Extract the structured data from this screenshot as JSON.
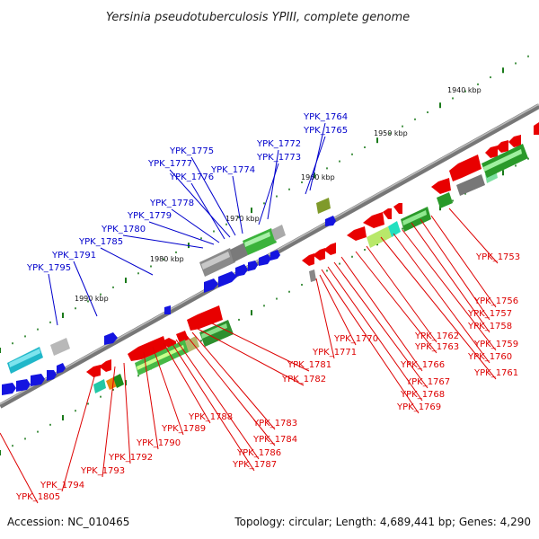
{
  "title": "Yersinia pseudotuberculosis YPIII, complete genome",
  "footer": {
    "accession": "Accession: NC_010465",
    "summary": "Topology: circular; Length: 4,689,441 bp; Genes: 4,290"
  },
  "colors": {
    "backbone": "#777777",
    "forward_label": "#0000cc",
    "reverse_label": "#dd0000",
    "tick": "#1a7a1a"
  },
  "scale_labels": [
    "1940 kbp",
    "1950 kbp",
    "1960 kbp",
    "1970 kbp",
    "1980 kbp",
    "1990 kbp"
  ],
  "forward_genes": [
    "YPK_1764",
    "YPK_1765",
    "YPK_1772",
    "YPK_1773",
    "YPK_1774",
    "YPK_1775",
    "YPK_1777",
    "YPK_1776",
    "YPK_1778",
    "YPK_1779",
    "YPK_1780",
    "YPK_1785",
    "YPK_1791",
    "YPK_1795"
  ],
  "reverse_genes": [
    "YPK_1753",
    "YPK_1756",
    "YPK_1757",
    "YPK_1758",
    "YPK_1759",
    "YPK_1760",
    "YPK_1761",
    "YPK_1762",
    "YPK_1763",
    "YPK_1766",
    "YPK_1767",
    "YPK_1768",
    "YPK_1769",
    "YPK_1770",
    "YPK_1771",
    "YPK_1781",
    "YPK_1782",
    "YPK_1783",
    "YPK_1784",
    "YPK_1786",
    "YPK_1787",
    "YPK_1788",
    "YPK_1789",
    "YPK_1790",
    "YPK_1792",
    "YPK_1793",
    "YPK_1794",
    "YPK_1805"
  ]
}
